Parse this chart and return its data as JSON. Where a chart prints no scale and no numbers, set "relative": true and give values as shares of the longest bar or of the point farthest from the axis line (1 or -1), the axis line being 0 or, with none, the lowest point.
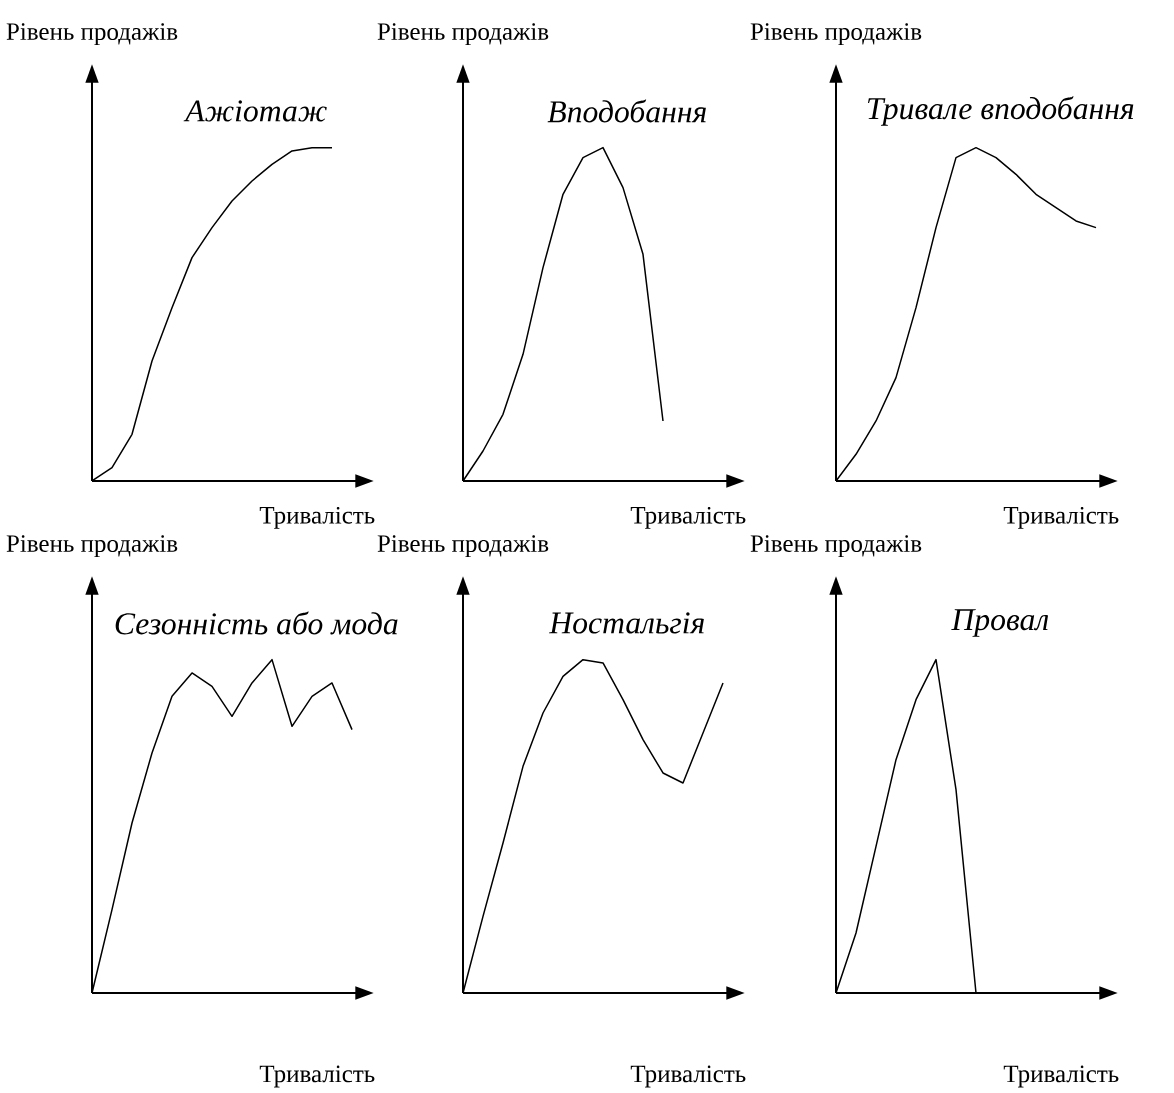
{
  "chart_data": [
    {
      "type": "line",
      "title": "Ажіотаж",
      "xlabel": "Тривалість",
      "ylabel": "Рівень продажів",
      "categories": [
        null,
        null,
        null,
        null,
        null,
        null,
        null,
        null,
        null,
        null,
        null,
        null,
        null,
        null
      ],
      "values": [
        0,
        0.04,
        0.14,
        0.36,
        0.52,
        0.67,
        0.76,
        0.84,
        0.9,
        0.95,
        0.99,
        1,
        1,
        null
      ],
      "color": "#000000",
      "relative": true,
      "tick_labels": false
    },
    {
      "type": "line",
      "title": "Вподобання",
      "xlabel": "Тривалість",
      "ylabel": "Рівень продажів",
      "categories": [
        null,
        null,
        null,
        null,
        null,
        null,
        null,
        null,
        null,
        null,
        null,
        null,
        null,
        null
      ],
      "values": [
        0,
        0.09,
        0.2,
        0.38,
        0.64,
        0.86,
        0.97,
        1,
        0.88,
        0.68,
        0.18,
        null,
        null,
        null
      ],
      "color": "#000000",
      "relative": true,
      "tick_labels": false
    },
    {
      "type": "line",
      "title": "Тривале вподобання",
      "xlabel": "Тривалість",
      "ylabel": "Рівень продажів",
      "categories": [
        null,
        null,
        null,
        null,
        null,
        null,
        null,
        null,
        null,
        null,
        null,
        null,
        null,
        null
      ],
      "values": [
        0,
        0.08,
        0.18,
        0.31,
        0.52,
        0.76,
        0.97,
        1,
        0.97,
        0.92,
        0.86,
        0.82,
        0.78,
        0.76
      ],
      "color": "#000000",
      "relative": true,
      "tick_labels": false
    },
    {
      "type": "line",
      "title": "Сезонність або мода",
      "xlabel": "Тривалість",
      "ylabel": "Рівень продажів",
      "categories": [
        null,
        null,
        null,
        null,
        null,
        null,
        null,
        null,
        null,
        null,
        null,
        null,
        null,
        null
      ],
      "values": [
        0,
        0.25,
        0.51,
        0.72,
        0.89,
        0.96,
        0.92,
        0.83,
        0.93,
        1,
        0.8,
        0.89,
        0.93,
        0.79
      ],
      "color": "#000000",
      "relative": true,
      "tick_labels": false
    },
    {
      "type": "line",
      "title": "Ностальгія",
      "xlabel": "Тривалість",
      "ylabel": "Рівень продажів",
      "categories": [
        null,
        null,
        null,
        null,
        null,
        null,
        null,
        null,
        null,
        null,
        null,
        null,
        null,
        null
      ],
      "values": [
        0,
        0.23,
        0.45,
        0.68,
        0.84,
        0.95,
        1,
        0.99,
        0.88,
        0.76,
        0.66,
        0.63,
        0.78,
        0.93
      ],
      "color": "#000000",
      "relative": true,
      "tick_labels": false
    },
    {
      "type": "line",
      "title": "Провал",
      "xlabel": "Тривалість",
      "ylabel": "Рівень продажів",
      "categories": [
        null,
        null,
        null,
        null,
        null,
        null,
        null,
        null,
        null,
        null,
        null,
        null,
        null,
        null
      ],
      "values": [
        0,
        0.18,
        0.44,
        0.7,
        0.88,
        1,
        0.61,
        0,
        null,
        null,
        null,
        null,
        null,
        null
      ],
      "color": "#000000",
      "relative": true,
      "tick_labels": false
    }
  ]
}
